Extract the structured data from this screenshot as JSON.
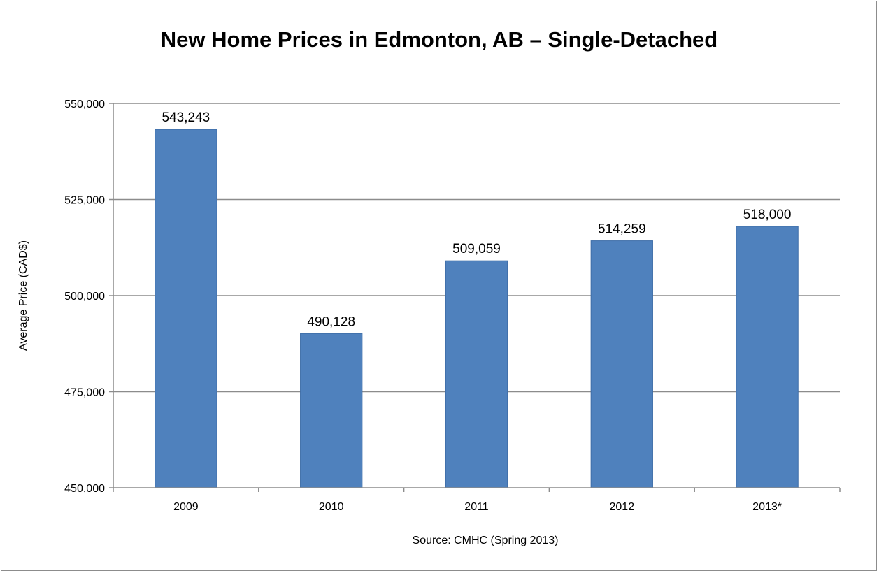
{
  "chart_data": {
    "type": "bar",
    "title": "New Home Prices in Edmonton, AB – Single-Detached",
    "xlabel": "Source: CMHC (Spring 2013)",
    "ylabel": "Average Price (CAD$)",
    "categories": [
      "2009",
      "2010",
      "2011",
      "2012",
      "2013*"
    ],
    "values": [
      543243,
      490128,
      509059,
      514259,
      518000
    ],
    "value_labels": [
      "543,243",
      "490,128",
      "509,059",
      "514,259",
      "518,000"
    ],
    "ylim": [
      450000,
      550000
    ],
    "yticks": [
      450000,
      475000,
      500000,
      525000,
      550000
    ],
    "ytick_labels": [
      "450,000",
      "475,000",
      "500,000",
      "525,000",
      "550,000"
    ],
    "grid": true,
    "legend": "none",
    "bar_color": "#4f81bd"
  }
}
